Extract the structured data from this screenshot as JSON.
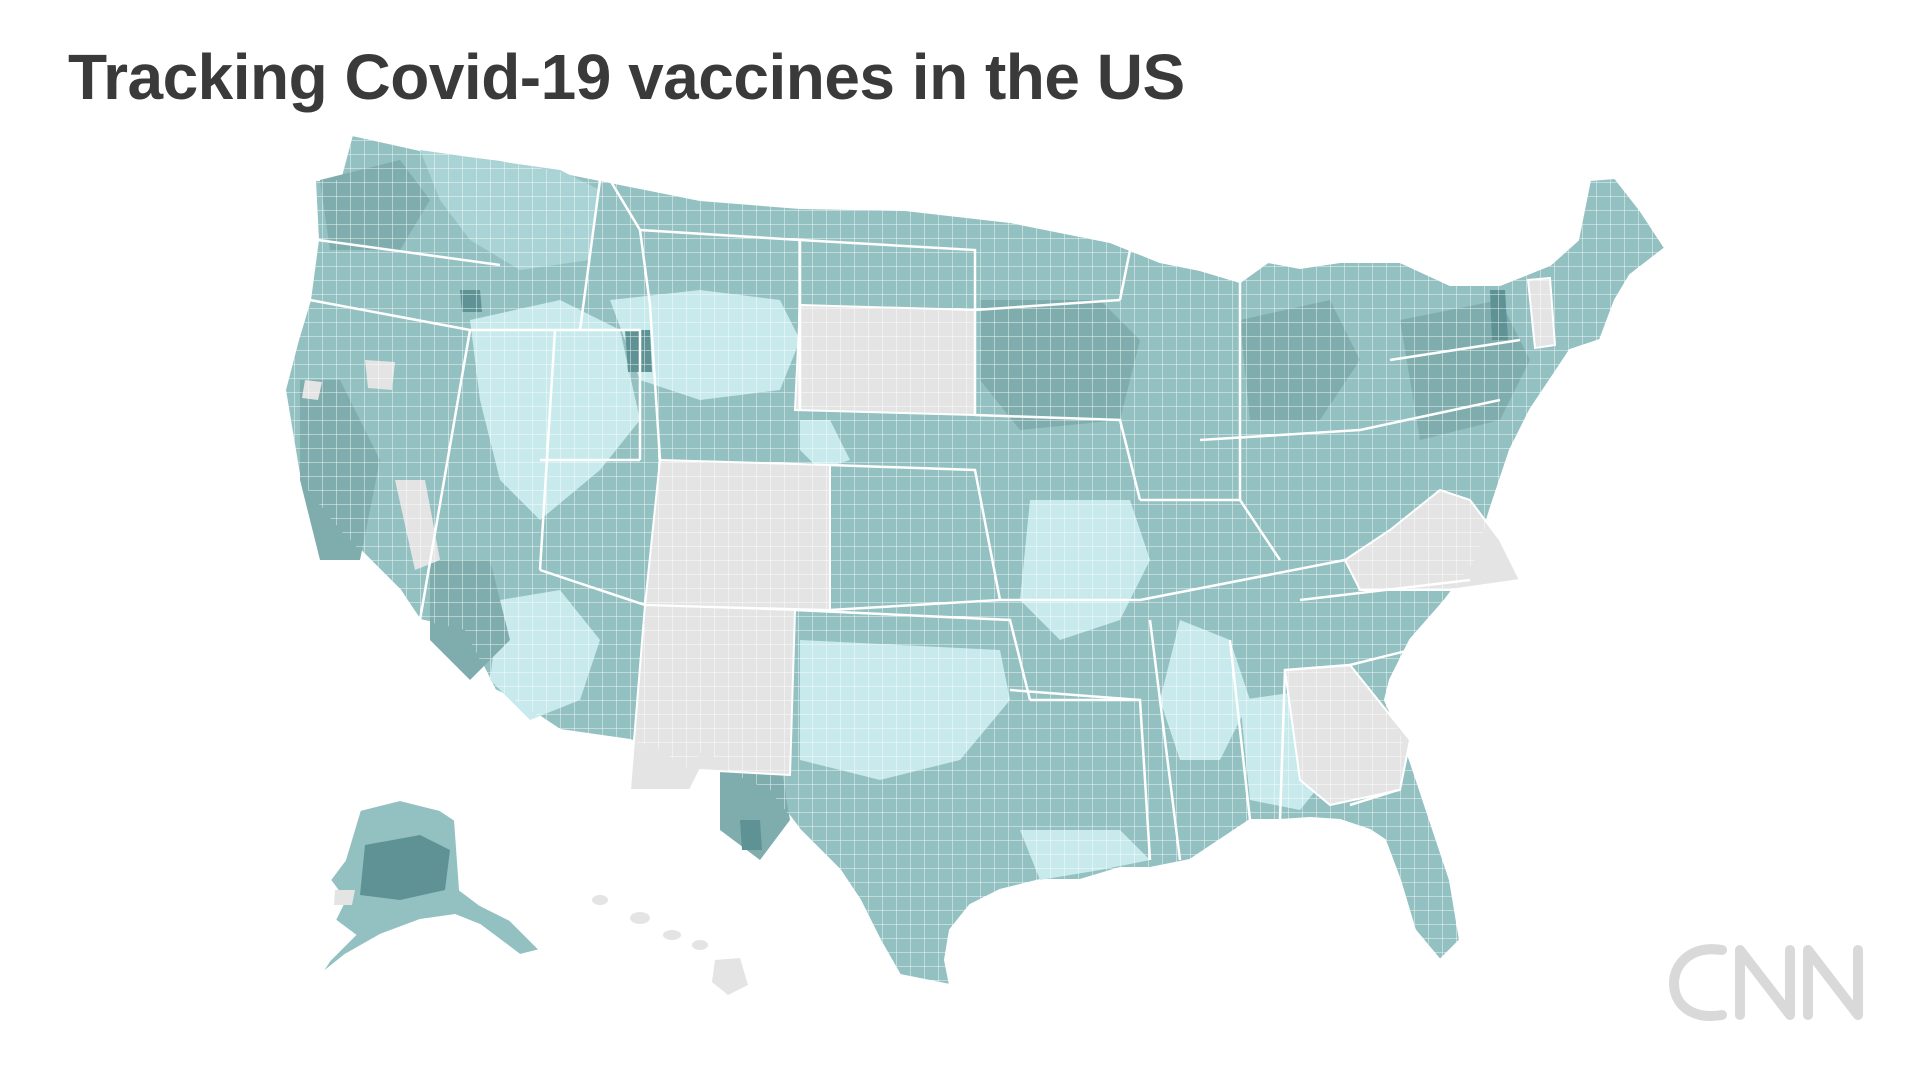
{
  "title": "Tracking Covid-19 vaccines in the US",
  "logo_text": "CNN",
  "colors": {
    "background": "#ffffff",
    "title": "#3a3a3a",
    "no_data": "#e4e4e4",
    "shade_lightest": "#c9eaec",
    "shade_light": "#a9d3d4",
    "shade_mid": "#93c0c1",
    "shade_dark": "#7fadae",
    "shade_darkest": "#5f9294",
    "boundary": "#ffffff",
    "logo": "#d9d9d9"
  },
  "map": {
    "no_data_states": [
      "South Dakota",
      "Colorado",
      "New Mexico",
      "Virginia",
      "West Virginia",
      "Georgia",
      "Vermont",
      "Hawaii"
    ]
  }
}
